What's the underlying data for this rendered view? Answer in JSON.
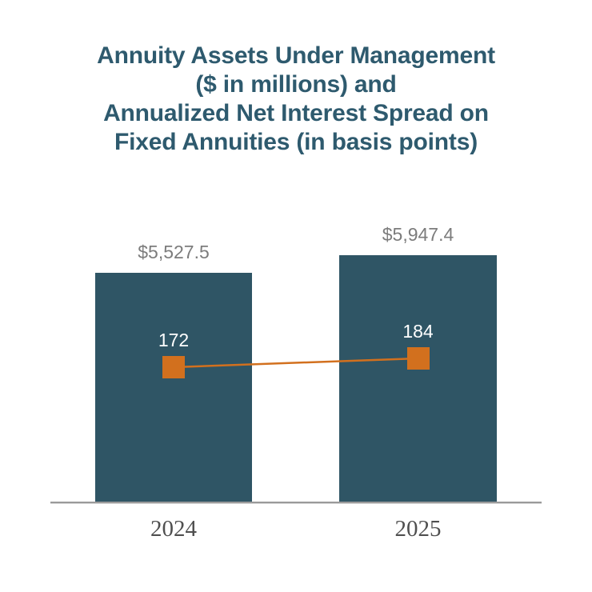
{
  "title": {
    "lines": [
      "Annuity Assets Under Management",
      "($ in millions) and",
      "Annualized Net Interest Spread on",
      "Fixed Annuities (in basis points)"
    ]
  },
  "chart_data": {
    "type": "combo",
    "title": "Annuity Assets Under Management ($ in millions) and Annualized Net Interest Spread on Fixed Annuities (in basis points)",
    "categories": [
      "2024",
      "2025"
    ],
    "series": [
      {
        "name": "Annuity Assets Under Management ($ in millions)",
        "type": "bar",
        "values": [
          5527.5,
          5947.4
        ],
        "labels": [
          "$5,527.5",
          "$5,947.4"
        ],
        "color": "#2F5565"
      },
      {
        "name": "Annualized Net Interest Spread on Fixed Annuities (in basis points)",
        "type": "line",
        "marker": "square",
        "values": [
          172,
          184
        ],
        "labels": [
          "172",
          "184"
        ],
        "color": "#D2701E"
      }
    ],
    "xlabel": "",
    "ylabel": "",
    "bar_axis_range": [
      0,
      6000
    ],
    "legend": "none",
    "grid": false
  },
  "colors": {
    "bar": "#2F5565",
    "accent_orange": "#D2701E",
    "title_text": "#2E5A6E",
    "value_label_text": "#7C7C7C",
    "marker_value_text": "#FFFFFF",
    "year_label_text": "#4F4F4F",
    "axis_line": "#9A9A9A"
  }
}
